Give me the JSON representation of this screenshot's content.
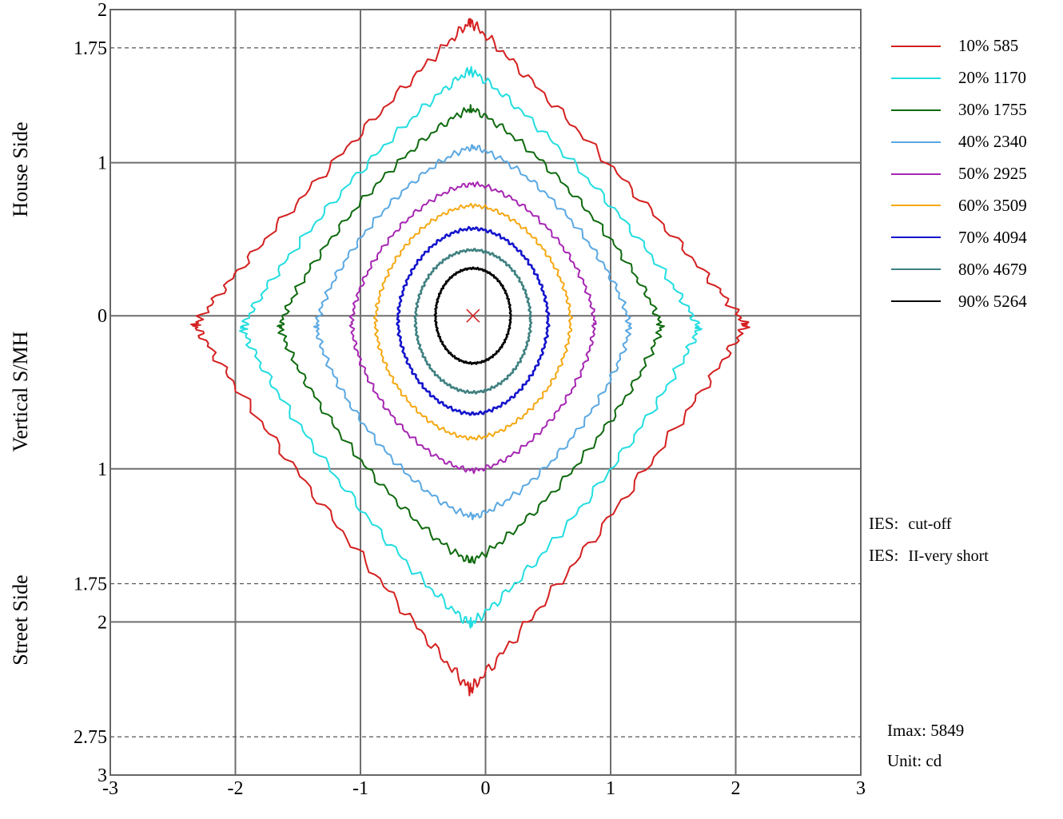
{
  "labels": {
    "house_side": "House Side",
    "vertical": "Vertical S/MH",
    "street_side": "Street Side"
  },
  "legend": [
    {
      "pct": "10%",
      "value": "585",
      "color": "#d42020"
    },
    {
      "pct": "20%",
      "value": "1170",
      "color": "#22dde0"
    },
    {
      "pct": "30%",
      "value": "1755",
      "color": "#0e6a0e"
    },
    {
      "pct": "40%",
      "value": "2340",
      "color": "#5aa8e2"
    },
    {
      "pct": "50%",
      "value": "2925",
      "color": "#a626b2"
    },
    {
      "pct": "60%",
      "value": "3509",
      "color": "#f5a812"
    },
    {
      "pct": "70%",
      "value": "4094",
      "color": "#1414cc"
    },
    {
      "pct": "80%",
      "value": "4679",
      "color": "#3f8080"
    },
    {
      "pct": "90%",
      "value": "5264",
      "color": "#000000"
    }
  ],
  "ies": [
    {
      "key": "IES:",
      "value": "cut-off"
    },
    {
      "key": "IES:",
      "value": "II-very short"
    }
  ],
  "imax": "Imax: 5849",
  "unit": "Unit: cd",
  "chart_data": {
    "type": "contour",
    "x_axis": {
      "range": [
        -3,
        3
      ],
      "tick_labels": [
        "-3",
        "-2",
        "-1",
        "0",
        "1",
        "2",
        "3"
      ],
      "grid": [
        -2,
        -1,
        0,
        1,
        2
      ]
    },
    "y_axis": {
      "range": [
        -3,
        2
      ],
      "tick_labels": [
        {
          "value": 2,
          "label": "2"
        },
        {
          "value": 1.75,
          "label": "1.75"
        },
        {
          "value": 1,
          "label": "1"
        },
        {
          "value": 0,
          "label": "0"
        },
        {
          "value": -1,
          "label": "1"
        },
        {
          "value": -1.75,
          "label": "1.75"
        },
        {
          "value": -2,
          "label": "2"
        },
        {
          "value": -2.75,
          "label": "2.75"
        },
        {
          "value": -3,
          "label": "3"
        }
      ],
      "grid": [
        1,
        0,
        -1,
        -2
      ],
      "dashed_lines": [
        1.75,
        -1.75,
        -2.75
      ]
    },
    "max_marker": {
      "x": -0.1,
      "y": 0
    },
    "series": [
      {
        "name": "10% 585",
        "color": "#d42020",
        "center_x": -0.12,
        "center_y": -0.06,
        "extent_left": 2.2,
        "extent_right": 2.2,
        "extent_up": 1.98,
        "extent_down": 2.38,
        "shape": 1.05
      },
      {
        "name": "20% 1170",
        "color": "#22dde0",
        "center_x": -0.12,
        "center_y": -0.08,
        "extent_left": 1.82,
        "extent_right": 1.82,
        "extent_up": 1.68,
        "extent_down": 1.93,
        "shape": 1.15
      },
      {
        "name": "30% 1755",
        "color": "#0e6a0e",
        "center_x": -0.12,
        "center_y": -0.07,
        "extent_left": 1.52,
        "extent_right": 1.52,
        "extent_up": 1.42,
        "extent_down": 1.53,
        "shape": 1.25
      },
      {
        "name": "40% 2340",
        "color": "#5aa8e2",
        "center_x": -0.1,
        "center_y": -0.07,
        "extent_left": 1.25,
        "extent_right": 1.25,
        "extent_up": 1.17,
        "extent_down": 1.24,
        "shape": 1.4
      },
      {
        "name": "50% 2925",
        "color": "#a626b2",
        "center_x": -0.1,
        "center_y": -0.05,
        "extent_left": 0.97,
        "extent_right": 0.97,
        "extent_up": 0.91,
        "extent_down": 0.96,
        "shape": 1.6
      },
      {
        "name": "60% 3509",
        "color": "#f5a812",
        "center_x": -0.1,
        "center_y": -0.04,
        "extent_left": 0.78,
        "extent_right": 0.78,
        "extent_up": 0.76,
        "extent_down": 0.76,
        "shape": 1.75
      },
      {
        "name": "70% 4094",
        "color": "#1414cc",
        "center_x": -0.1,
        "center_y": -0.03,
        "extent_left": 0.6,
        "extent_right": 0.6,
        "extent_up": 0.6,
        "extent_down": 0.61,
        "shape": 1.85
      },
      {
        "name": "80% 4679",
        "color": "#3f8080",
        "center_x": -0.1,
        "center_y": -0.03,
        "extent_left": 0.46,
        "extent_right": 0.46,
        "extent_up": 0.46,
        "extent_down": 0.47,
        "shape": 1.95
      },
      {
        "name": "90% 5264",
        "color": "#000000",
        "center_x": -0.1,
        "center_y": 0.0,
        "extent_left": 0.3,
        "extent_right": 0.3,
        "extent_up": 0.31,
        "extent_down": 0.31,
        "shape": 2.0
      }
    ]
  }
}
